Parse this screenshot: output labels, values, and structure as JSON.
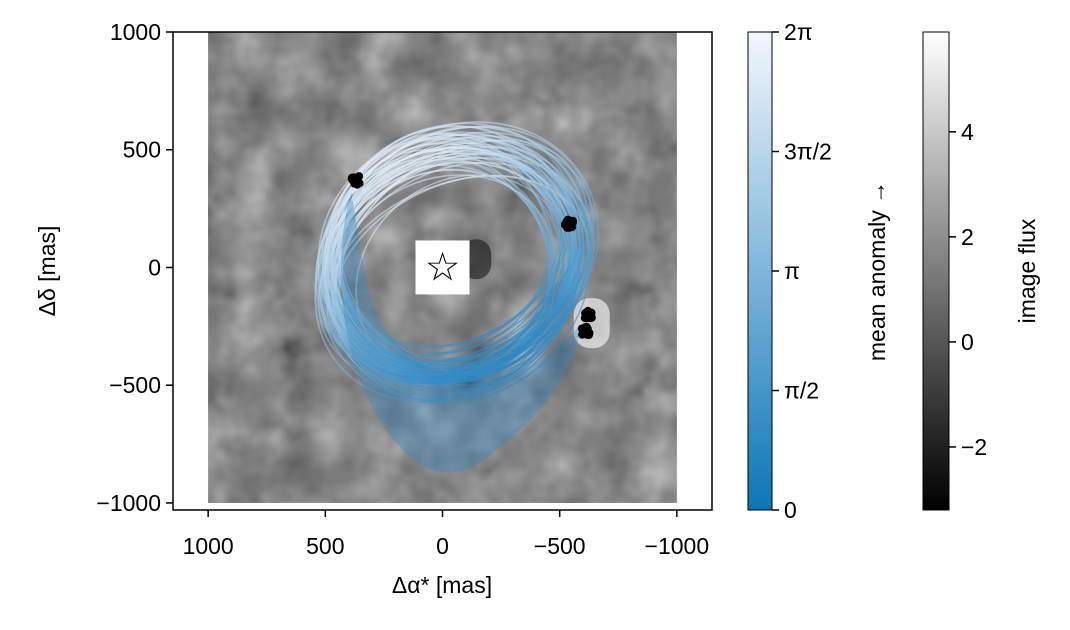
{
  "chart_data": {
    "type": "scatter",
    "title": "",
    "xlabel": "Δα* [mas]",
    "ylabel": "Δδ [mas]",
    "xlim": [
      1150,
      -1150
    ],
    "ylim": [
      -1030,
      1000
    ],
    "x_reversed": true,
    "x_ticks": [
      1000,
      500,
      0,
      -500,
      -1000
    ],
    "x_tick_labels": [
      "1000",
      "500",
      "0",
      "−500",
      "−1000"
    ],
    "y_ticks": [
      -1000,
      -500,
      0,
      500,
      1000
    ],
    "y_tick_labels": [
      "−1000",
      "−500",
      "0",
      "500",
      "1000"
    ],
    "grid": false,
    "image_extent": {
      "x": [
        1000,
        -1000
      ],
      "y": [
        -1000,
        1000
      ]
    },
    "star_marker": {
      "x": 0,
      "y": 0,
      "symbol": "☆"
    },
    "orbit_ensemble": {
      "description_colored_by": "mean anomaly",
      "count": 60,
      "center_x_range": [
        -95,
        15
      ],
      "center_y_range": [
        -60,
        95
      ],
      "semi_major_range": [
        455,
        620
      ],
      "semi_minor_range": [
        390,
        540
      ],
      "tilt_deg_range": [
        20,
        42
      ]
    },
    "epochs": [
      {
        "x": 370,
        "y": 370
      },
      {
        "x": -540,
        "y": 185
      },
      {
        "x": -620,
        "y": -200
      },
      {
        "x": -610,
        "y": -270
      }
    ],
    "colorbars": [
      {
        "label": "mean anomaly →",
        "ticks": [
          0,
          1.5708,
          3.1416,
          4.7124,
          6.2832
        ],
        "tick_labels": [
          "0",
          "π/2",
          "π",
          "3π/2",
          "2π"
        ],
        "range": [
          0,
          6.2832
        ],
        "color_low": "#0a76b7",
        "color_high": "#f3f7fb"
      },
      {
        "label": "image flux",
        "ticks": [
          -2,
          0,
          2,
          4
        ],
        "tick_labels": [
          "−2",
          "0",
          "2",
          "4"
        ],
        "range": [
          -3.2,
          5.9
        ],
        "color_low": "#000000",
        "color_high": "#ffffff"
      }
    ]
  },
  "colors": {
    "orbit_dark": "#1a7fc0",
    "orbit_light": "#dbe9f5",
    "epoch_points": "#000000",
    "frame": "#000000"
  }
}
